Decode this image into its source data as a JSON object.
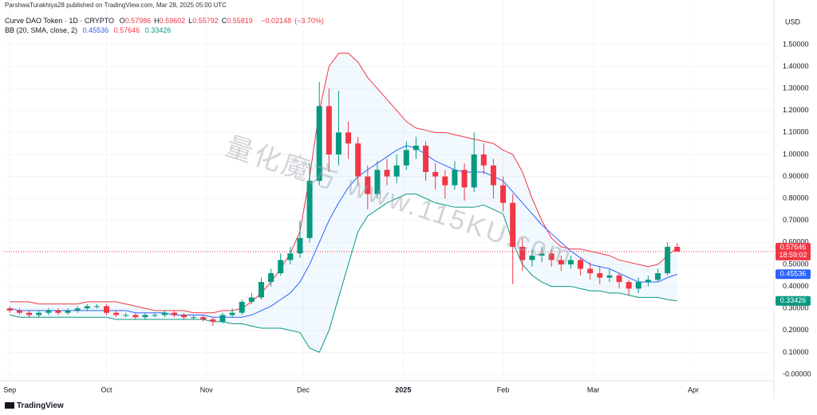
{
  "header": {
    "publisher": "ParshwaTurakhiya28 published on TradingView.com, Mar 28, 2025 05:00 UTC",
    "footer": "TradingView",
    "watermark": "量化魔方 www.115KU.com"
  },
  "chart_data": {
    "type": "candlestick",
    "symbol": "Curve DAO Token · 1D · CRYPTO",
    "ohlc_letters": [
      "O",
      "H",
      "L",
      "C"
    ],
    "change": {
      "value": -0.02148,
      "label": "−0.02148"
    },
    "change_pct": {
      "value": -3.7,
      "label": "(−3.70%)"
    },
    "indicator": "BB (20, SMA, close, 2)",
    "currency": "USD",
    "countdown": "18:59:02",
    "up_color": "#089981",
    "down_color": "#f23645",
    "open": [
      0.3,
      0.29,
      0.28,
      0.27,
      0.28,
      0.29,
      0.28,
      0.29,
      0.3,
      0.31,
      0.31,
      0.28,
      0.27,
      0.27,
      0.26,
      0.27,
      0.27,
      0.28,
      0.27,
      0.26,
      0.26,
      0.25,
      0.24,
      0.27,
      0.28,
      0.33,
      0.35,
      0.42,
      0.46,
      0.52,
      0.55,
      0.62,
      0.88,
      1.22,
      1.0,
      1.1,
      1.05,
      0.9,
      0.82,
      0.93,
      0.9,
      0.95,
      1.02,
      1.04,
      0.92,
      0.9,
      0.86,
      0.93,
      0.85,
      1.0,
      0.95,
      0.86,
      0.78,
      0.58,
      0.52,
      0.54,
      0.55,
      0.52,
      0.5,
      0.52,
      0.48,
      0.46,
      0.44,
      0.45,
      0.42,
      0.39,
      0.42,
      0.43,
      0.46,
      0.57986
    ],
    "high": [
      0.31,
      0.3,
      0.29,
      0.29,
      0.3,
      0.3,
      0.3,
      0.31,
      0.32,
      0.32,
      0.32,
      0.29,
      0.28,
      0.28,
      0.28,
      0.28,
      0.29,
      0.29,
      0.28,
      0.27,
      0.27,
      0.26,
      0.28,
      0.3,
      0.34,
      0.37,
      0.44,
      0.48,
      0.55,
      0.58,
      0.7,
      0.96,
      1.33,
      1.3,
      1.29,
      1.15,
      1.08,
      0.95,
      0.97,
      0.98,
      1.0,
      1.06,
      1.08,
      1.06,
      0.96,
      0.93,
      0.97,
      0.96,
      1.1,
      1.05,
      0.98,
      0.9,
      0.82,
      0.62,
      0.57,
      0.58,
      0.57,
      0.54,
      0.54,
      0.53,
      0.51,
      0.49,
      0.48,
      0.46,
      0.43,
      0.44,
      0.45,
      0.48,
      0.6,
      0.59602
    ],
    "low": [
      0.28,
      0.27,
      0.26,
      0.26,
      0.27,
      0.27,
      0.27,
      0.28,
      0.29,
      0.3,
      0.27,
      0.26,
      0.26,
      0.25,
      0.25,
      0.26,
      0.26,
      0.26,
      0.25,
      0.25,
      0.24,
      0.22,
      0.23,
      0.26,
      0.27,
      0.32,
      0.34,
      0.4,
      0.45,
      0.5,
      0.53,
      0.6,
      0.86,
      0.92,
      0.95,
      0.98,
      0.86,
      0.75,
      0.8,
      0.86,
      0.87,
      0.93,
      0.98,
      0.88,
      0.84,
      0.8,
      0.84,
      0.79,
      0.83,
      0.91,
      0.8,
      0.74,
      0.41,
      0.47,
      0.49,
      0.51,
      0.49,
      0.47,
      0.48,
      0.45,
      0.43,
      0.41,
      0.42,
      0.39,
      0.36,
      0.37,
      0.4,
      0.42,
      0.45,
      0.55792
    ],
    "close": [
      0.29,
      0.28,
      0.27,
      0.28,
      0.29,
      0.28,
      0.29,
      0.3,
      0.31,
      0.31,
      0.28,
      0.27,
      0.27,
      0.26,
      0.27,
      0.27,
      0.28,
      0.27,
      0.26,
      0.26,
      0.25,
      0.24,
      0.27,
      0.28,
      0.33,
      0.35,
      0.42,
      0.46,
      0.52,
      0.55,
      0.62,
      0.88,
      1.22,
      1.0,
      1.1,
      1.05,
      0.9,
      0.82,
      0.93,
      0.9,
      0.95,
      1.02,
      1.04,
      0.92,
      0.9,
      0.86,
      0.93,
      0.85,
      1.0,
      0.95,
      0.86,
      0.78,
      0.58,
      0.52,
      0.54,
      0.55,
      0.52,
      0.5,
      0.52,
      0.48,
      0.46,
      0.44,
      0.45,
      0.42,
      0.39,
      0.42,
      0.43,
      0.46,
      0.58,
      0.55819
    ],
    "bb_basis": {
      "color": "#2962ff",
      "values": [
        0.3,
        0.29,
        0.29,
        0.29,
        0.29,
        0.29,
        0.29,
        0.29,
        0.29,
        0.29,
        0.29,
        0.29,
        0.29,
        0.28,
        0.28,
        0.28,
        0.28,
        0.27,
        0.27,
        0.27,
        0.27,
        0.26,
        0.26,
        0.26,
        0.26,
        0.27,
        0.29,
        0.31,
        0.34,
        0.37,
        0.42,
        0.5,
        0.6,
        0.7,
        0.78,
        0.85,
        0.9,
        0.93,
        0.96,
        0.99,
        1.02,
        1.04,
        1.03,
        1.0,
        0.97,
        0.95,
        0.93,
        0.92,
        0.92,
        0.92,
        0.9,
        0.88,
        0.83,
        0.78,
        0.73,
        0.68,
        0.64,
        0.6,
        0.56,
        0.53,
        0.5,
        0.49,
        0.48,
        0.46,
        0.44,
        0.42,
        0.42,
        0.42,
        0.44,
        0.45536
      ]
    },
    "bb_upper": {
      "color": "#f23645",
      "values": [
        0.33,
        0.33,
        0.33,
        0.32,
        0.32,
        0.32,
        0.32,
        0.32,
        0.33,
        0.33,
        0.33,
        0.33,
        0.32,
        0.31,
        0.3,
        0.29,
        0.29,
        0.29,
        0.29,
        0.28,
        0.28,
        0.28,
        0.29,
        0.29,
        0.3,
        0.33,
        0.37,
        0.42,
        0.48,
        0.55,
        0.65,
        0.9,
        1.2,
        1.4,
        1.46,
        1.46,
        1.42,
        1.35,
        1.3,
        1.25,
        1.2,
        1.15,
        1.12,
        1.11,
        1.1,
        1.1,
        1.09,
        1.08,
        1.07,
        1.06,
        1.05,
        1.02,
        1.0,
        0.92,
        0.8,
        0.7,
        0.62,
        0.58,
        0.57,
        0.57,
        0.56,
        0.55,
        0.54,
        0.52,
        0.51,
        0.5,
        0.49,
        0.5,
        0.54,
        0.57646
      ]
    },
    "bb_lower": {
      "color": "#089981",
      "values": [
        0.27,
        0.26,
        0.26,
        0.26,
        0.26,
        0.26,
        0.26,
        0.26,
        0.26,
        0.26,
        0.26,
        0.25,
        0.25,
        0.25,
        0.25,
        0.25,
        0.25,
        0.25,
        0.25,
        0.25,
        0.25,
        0.24,
        0.24,
        0.23,
        0.23,
        0.22,
        0.21,
        0.21,
        0.21,
        0.2,
        0.19,
        0.12,
        0.1,
        0.2,
        0.35,
        0.5,
        0.65,
        0.72,
        0.75,
        0.78,
        0.8,
        0.82,
        0.82,
        0.8,
        0.78,
        0.77,
        0.76,
        0.76,
        0.76,
        0.77,
        0.75,
        0.73,
        0.6,
        0.5,
        0.45,
        0.42,
        0.4,
        0.4,
        0.4,
        0.39,
        0.38,
        0.38,
        0.37,
        0.37,
        0.36,
        0.35,
        0.35,
        0.35,
        0.34,
        0.33426
      ]
    },
    "band_fill": "#2196f3",
    "xlim": [
      -0.6,
      79
    ],
    "ylim": [
      -0.029,
      1.63
    ],
    "xticks": [
      {
        "value": 0,
        "label": "Sep"
      },
      {
        "value": 10,
        "label": "Oct"
      },
      {
        "value": 20.33,
        "label": "Nov"
      },
      {
        "value": 30.33,
        "label": "Dec"
      },
      {
        "value": 40.67,
        "label": "2025"
      },
      {
        "value": 51,
        "label": "Feb"
      },
      {
        "value": 60.33,
        "label": "Mar"
      },
      {
        "value": 70.67,
        "label": "Apr"
      }
    ],
    "yticks": [
      {
        "value": 0,
        "label": "-0.00000"
      },
      {
        "value": 0.1,
        "label": "0.10000"
      },
      {
        "value": 0.2,
        "label": "0.20000"
      },
      {
        "value": 0.3,
        "label": "0.30000"
      },
      {
        "value": 0.4,
        "label": "0.40000"
      },
      {
        "value": 0.5,
        "label": "0.50000"
      },
      {
        "value": 0.6,
        "label": "0.60000"
      },
      {
        "value": 0.7,
        "label": "0.70000"
      },
      {
        "value": 0.8,
        "label": "0.80000"
      },
      {
        "value": 0.9,
        "label": "0.90000"
      },
      {
        "value": 1,
        "label": "1.00000"
      },
      {
        "value": 1.1,
        "label": "1.10000"
      },
      {
        "value": 1.2,
        "label": "1.20000"
      },
      {
        "value": 1.3,
        "label": "1.30000"
      },
      {
        "value": 1.4,
        "label": "1.40000"
      },
      {
        "value": 1.5,
        "label": "1.50000"
      }
    ],
    "grid": true
  }
}
